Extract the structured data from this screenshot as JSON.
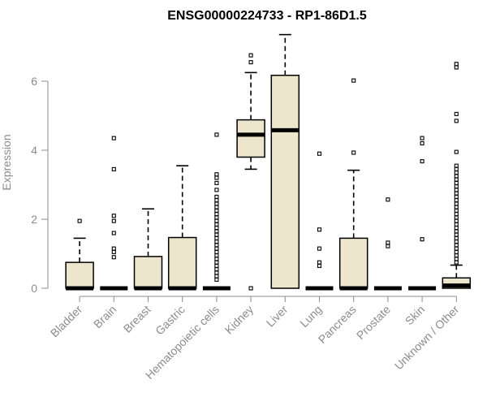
{
  "chart_data": {
    "type": "boxplot",
    "title": "ENSG00000224733 - RP1-86D1.5",
    "xlabel": "",
    "ylabel": "Expression",
    "ylim": [
      -0.2,
      7.5
    ],
    "yticks": [
      0,
      2,
      4,
      6
    ],
    "box_color": "#ede6cc",
    "categories": [
      "Bladder",
      "Brain",
      "Breast",
      "Gastric",
      "Hematopoietic cells",
      "Kidney",
      "Liver",
      "Lung",
      "Pancreas",
      "Prostate",
      "Skin",
      "Unknown / Other"
    ],
    "boxes": [
      {
        "q1": 0,
        "median": 0,
        "q3": 0.75,
        "whisker_low": 0,
        "whisker_high": 1.45,
        "outliers": [
          1.95
        ]
      },
      {
        "q1": 0,
        "median": 0,
        "q3": 0,
        "whisker_low": 0,
        "whisker_high": 0,
        "outliers": [
          0.9,
          1.05,
          1.15,
          1.6,
          1.95,
          2.1,
          3.45,
          4.35
        ]
      },
      {
        "q1": 0,
        "median": 0,
        "q3": 0.92,
        "whisker_low": 0,
        "whisker_high": 2.3,
        "outliers": []
      },
      {
        "q1": 0,
        "median": 0,
        "q3": 1.47,
        "whisker_low": 0,
        "whisker_high": 3.55,
        "outliers": []
      },
      {
        "q1": 0,
        "median": 0,
        "q3": 0,
        "whisker_low": 0,
        "whisker_high": 0,
        "outliers": [
          0.25,
          0.35,
          0.45,
          0.55,
          0.65,
          0.75,
          0.85,
          0.95,
          1.05,
          1.15,
          1.25,
          1.35,
          1.45,
          1.55,
          1.65,
          1.75,
          1.85,
          1.95,
          2.05,
          2.15,
          2.25,
          2.35,
          2.45,
          2.55,
          2.65,
          2.85,
          3.05,
          3.2,
          3.3,
          4.45
        ]
      },
      {
        "q1": 3.8,
        "median": 4.45,
        "q3": 4.88,
        "whisker_low": 3.45,
        "whisker_high": 6.25,
        "outliers": [
          0,
          6.55,
          6.75
        ]
      },
      {
        "q1": 0,
        "median": 4.58,
        "q3": 6.17,
        "whisker_low": 0,
        "whisker_high": 7.35,
        "outliers": []
      },
      {
        "q1": 0,
        "median": 0,
        "q3": 0,
        "whisker_low": 0,
        "whisker_high": 0,
        "outliers": [
          0.65,
          0.75,
          1.15,
          1.7,
          3.9
        ]
      },
      {
        "q1": 0,
        "median": 0,
        "q3": 1.45,
        "whisker_low": 0,
        "whisker_high": 3.42,
        "outliers": [
          3.93,
          6.02
        ]
      },
      {
        "q1": 0,
        "median": 0,
        "q3": 0,
        "whisker_low": 0,
        "whisker_high": 0,
        "outliers": [
          1.22,
          1.32,
          2.57
        ]
      },
      {
        "q1": 0,
        "median": 0,
        "q3": 0,
        "whisker_low": 0,
        "whisker_high": 0,
        "outliers": [
          1.42,
          3.68,
          4.2,
          4.35
        ]
      },
      {
        "q1": 0,
        "median": 0.08,
        "q3": 0.3,
        "whisker_low": 0,
        "whisker_high": 0.67,
        "outliers": [
          0.75,
          0.85,
          0.95,
          1.05,
          1.15,
          1.25,
          1.35,
          1.45,
          1.55,
          1.65,
          1.75,
          1.85,
          1.95,
          2.05,
          2.15,
          2.25,
          2.35,
          2.45,
          2.55,
          2.65,
          2.75,
          2.85,
          2.95,
          3.05,
          3.15,
          3.25,
          3.35,
          3.45,
          3.55,
          3.95,
          4.85,
          5.05,
          6.4,
          6.5
        ]
      }
    ]
  }
}
